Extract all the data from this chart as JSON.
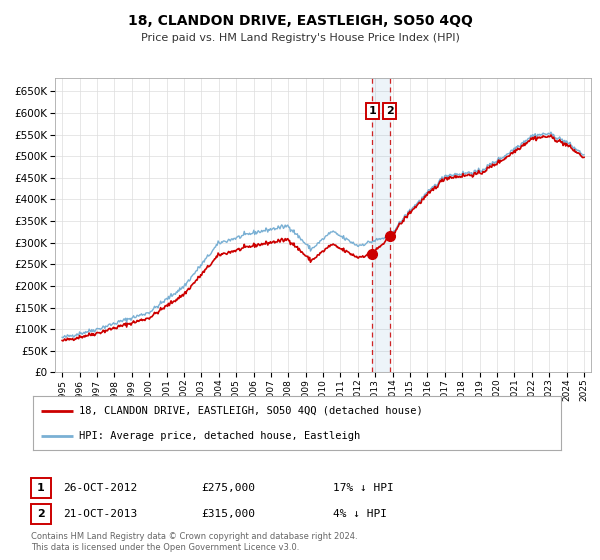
{
  "title": "18, CLANDON DRIVE, EASTLEIGH, SO50 4QQ",
  "subtitle": "Price paid vs. HM Land Registry's House Price Index (HPI)",
  "legend_line1": "18, CLANDON DRIVE, EASTLEIGH, SO50 4QQ (detached house)",
  "legend_line2": "HPI: Average price, detached house, Eastleigh",
  "annotation1_date": "26-OCT-2012",
  "annotation1_price": "£275,000",
  "annotation1_hpi": "17% ↓ HPI",
  "annotation2_date": "21-OCT-2013",
  "annotation2_price": "£315,000",
  "annotation2_hpi": "4% ↓ HPI",
  "footer": "Contains HM Land Registry data © Crown copyright and database right 2024.\nThis data is licensed under the Open Government Licence v3.0.",
  "property_color": "#cc0000",
  "hpi_color": "#7ab0d4",
  "background_color": "#ffffff",
  "grid_color": "#dddddd",
  "sale1_x": 2012.82,
  "sale1_y": 275000,
  "sale2_x": 2013.82,
  "sale2_y": 315000,
  "ylim_min": 0,
  "ylim_max": 680000,
  "xlim_min": 1994.6,
  "xlim_max": 2025.4,
  "yticks": [
    0,
    50000,
    100000,
    150000,
    200000,
    250000,
    300000,
    350000,
    400000,
    450000,
    500000,
    550000,
    600000,
    650000
  ],
  "xticks": [
    1995,
    1996,
    1997,
    1998,
    1999,
    2000,
    2001,
    2002,
    2003,
    2004,
    2005,
    2006,
    2007,
    2008,
    2009,
    2010,
    2011,
    2012,
    2013,
    2014,
    2015,
    2016,
    2017,
    2018,
    2019,
    2020,
    2021,
    2022,
    2023,
    2024,
    2025
  ]
}
